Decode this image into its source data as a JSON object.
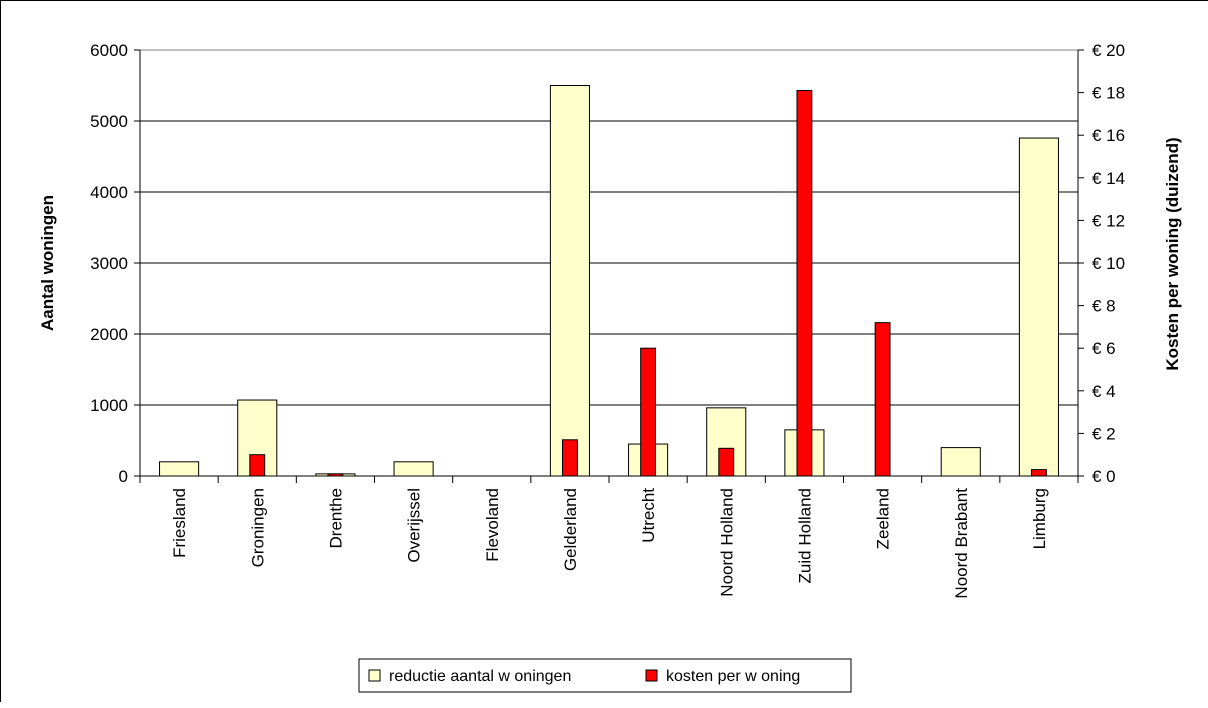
{
  "chart_data": {
    "type": "bar",
    "categories": [
      "Friesland",
      "Groningen",
      "Drenthe",
      "Overijssel",
      "Flevoland",
      "Gelderland",
      "Utrecht",
      "Noord Holland",
      "Zuid Holland",
      "Zeeland",
      "Noord Brabant",
      "Limburg"
    ],
    "series": [
      {
        "name": "reductie aantal w oningen",
        "axis": "left",
        "color": "#FFFFCC",
        "values": [
          200,
          1070,
          30,
          200,
          0,
          5500,
          450,
          960,
          650,
          0,
          400,
          4760
        ]
      },
      {
        "name": "kosten per w oning",
        "axis": "right",
        "color": "#FF0000",
        "values": [
          0,
          1.0,
          0.1,
          0,
          0,
          1.7,
          6.0,
          1.3,
          18.1,
          7.2,
          0,
          0.3
        ]
      }
    ],
    "title": "",
    "xlabel": "",
    "ylabel": "Aantal woningen",
    "y2label": "Kosten per woning (duizend)",
    "ylim": [
      0,
      6000
    ],
    "yticks": [
      "0",
      "1000",
      "2000",
      "3000",
      "4000",
      "5000",
      "6000"
    ],
    "y2lim": [
      0,
      20
    ],
    "y2ticks": [
      "€ 0",
      "€ 2",
      "€ 4",
      "€ 6",
      "€ 8",
      "€ 10",
      "€ 12",
      "€ 14",
      "€ 16",
      "€ 18",
      "€ 20"
    ],
    "grid": true,
    "legend_position": "bottom-center",
    "legend": [
      "reductie aantal w oningen",
      "kosten per w oning"
    ]
  }
}
